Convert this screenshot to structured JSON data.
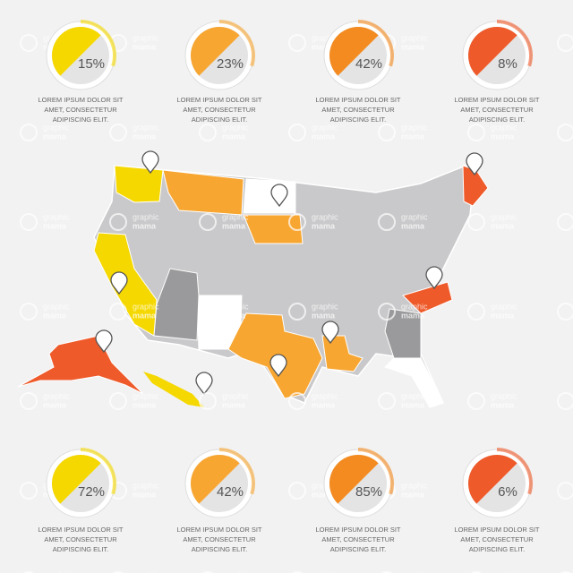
{
  "stats": [
    {
      "value": "15%",
      "caption": [
        "LOREM IPSUM DOLOR SIT",
        "AMET, CONSECTETUR",
        "ADIPISCING ELIT."
      ]
    },
    {
      "value": "23%",
      "caption": [
        "LOREM IPSUM DOLOR SIT",
        "AMET, CONSECTETUR",
        "ADIPISCING ELIT."
      ]
    },
    {
      "value": "42%",
      "caption": [
        "LOREM IPSUM DOLOR SIT",
        "AMET, CONSECTETUR",
        "ADIPISCING ELIT."
      ]
    },
    {
      "value": "8%",
      "caption": [
        "LOREM IPSUM DOLOR SIT",
        "AMET, CONSECTETUR",
        "ADIPISCING ELIT."
      ]
    },
    {
      "value": "72%",
      "caption": [
        "LOREM IPSUM DOLOR SIT",
        "AMET, CONSECTETUR",
        "ADIPISCING ELIT."
      ]
    },
    {
      "value": "42%",
      "caption": [
        "LOREM IPSUM DOLOR SIT",
        "AMET, CONSECTETUR",
        "ADIPISCING ELIT."
      ]
    },
    {
      "value": "85%",
      "caption": [
        "LOREM IPSUM DOLOR SIT",
        "AMET, CONSECTETUR",
        "ADIPISCING ELIT."
      ]
    },
    {
      "value": "6%",
      "caption": [
        "LOREM IPSUM DOLOR SIT",
        "AMET, CONSECTETUR",
        "ADIPISCING ELIT."
      ]
    }
  ],
  "watermark": [
    "graphic",
    "mama"
  ]
}
